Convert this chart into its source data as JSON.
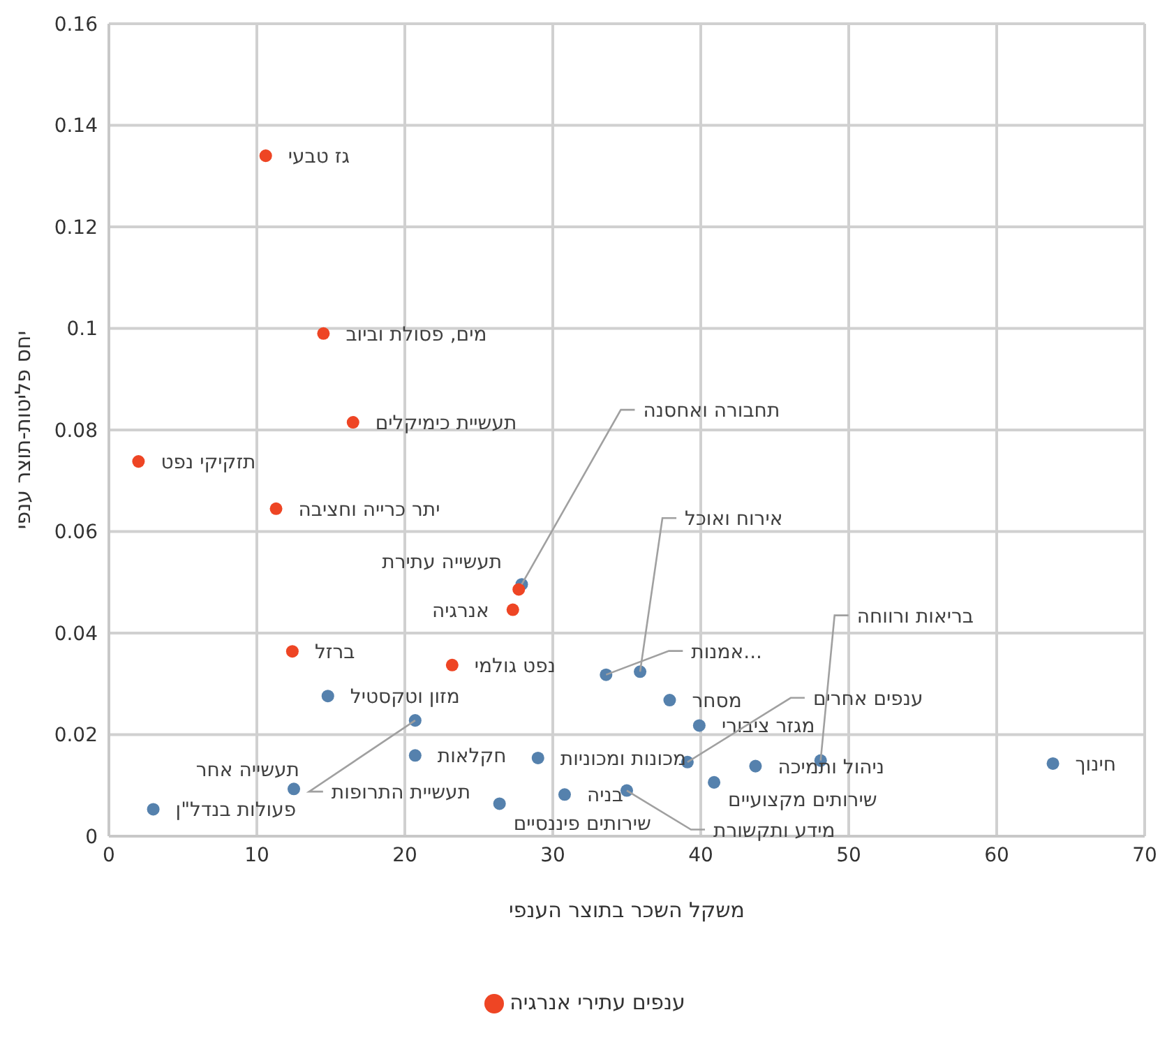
{
  "chart_data": {
    "type": "scatter",
    "xlabel": "משקל השכר בתוצר הענפי",
    "ylabel": "יחס פליטות-תוצר ענפי",
    "xlim": [
      0,
      70
    ],
    "xticks": [
      0,
      10,
      20,
      30,
      40,
      50,
      60,
      70
    ],
    "ylim": [
      0,
      0.16
    ],
    "yticks": [
      0,
      0.02,
      0.04,
      0.06,
      0.08,
      0.1,
      0.12,
      0.14,
      0.16
    ],
    "grid": true,
    "legend": "bottom",
    "marker": "circle",
    "series": [
      {
        "name": "ענפים עתירי אנרגיה",
        "color": "#ee4524",
        "x": [
          10.6,
          14.5,
          16.5,
          2.0,
          11.3,
          27.7,
          27.3,
          12.4,
          23.2
        ],
        "values": [
          0.134,
          0.099,
          0.0815,
          0.0738,
          0.0645,
          0.0486,
          0.0446,
          0.0364,
          0.0337
        ],
        "value_labels": [
          "גז טבעי",
          "מים, פסולת וביוב",
          "תעשיית כימיקלים",
          "תזקיקי נפט",
          "יתר כרייה וחציבה",
          "תעשייה עתירת",
          "אנרגיה",
          "ברזל",
          "נפט גולמי"
        ]
      },
      {
        "color": "#5581ad",
        "x": [
          14.8,
          20.7,
          20.7,
          29.0,
          33.6,
          35.9,
          37.9,
          39.9,
          39.1,
          43.7,
          48.1,
          40.9,
          30.8,
          35.0,
          26.4,
          63.8,
          12.5,
          3.0,
          27.9
        ],
        "values": [
          0.0276,
          0.0228,
          0.0159,
          0.0154,
          0.0318,
          0.0324,
          0.0268,
          0.0218,
          0.0146,
          0.0138,
          0.0149,
          0.0106,
          0.0082,
          0.009,
          0.0064,
          0.0143,
          0.0093,
          0.0053,
          0.0496
        ],
        "value_labels": [
          "מזון וטקסטיל",
          "תעשיית התרופות",
          "חקלאות",
          "מכונות ומכוניות",
          "אמנות...",
          "אירוח ואוכל",
          "מסחר",
          "מגזר ציבורי",
          "ענפים אחרים",
          "ניהול ותמיכה",
          "בריאות ורווחה",
          "שירותים מקצועיים",
          "בניה",
          "מידע ותקשורת",
          "שירותים פיננסיים",
          "חינוך",
          "תעשייה אחר",
          "פעולות בנדל\"ן",
          "תחבורה ואחסנה"
        ]
      }
    ]
  }
}
